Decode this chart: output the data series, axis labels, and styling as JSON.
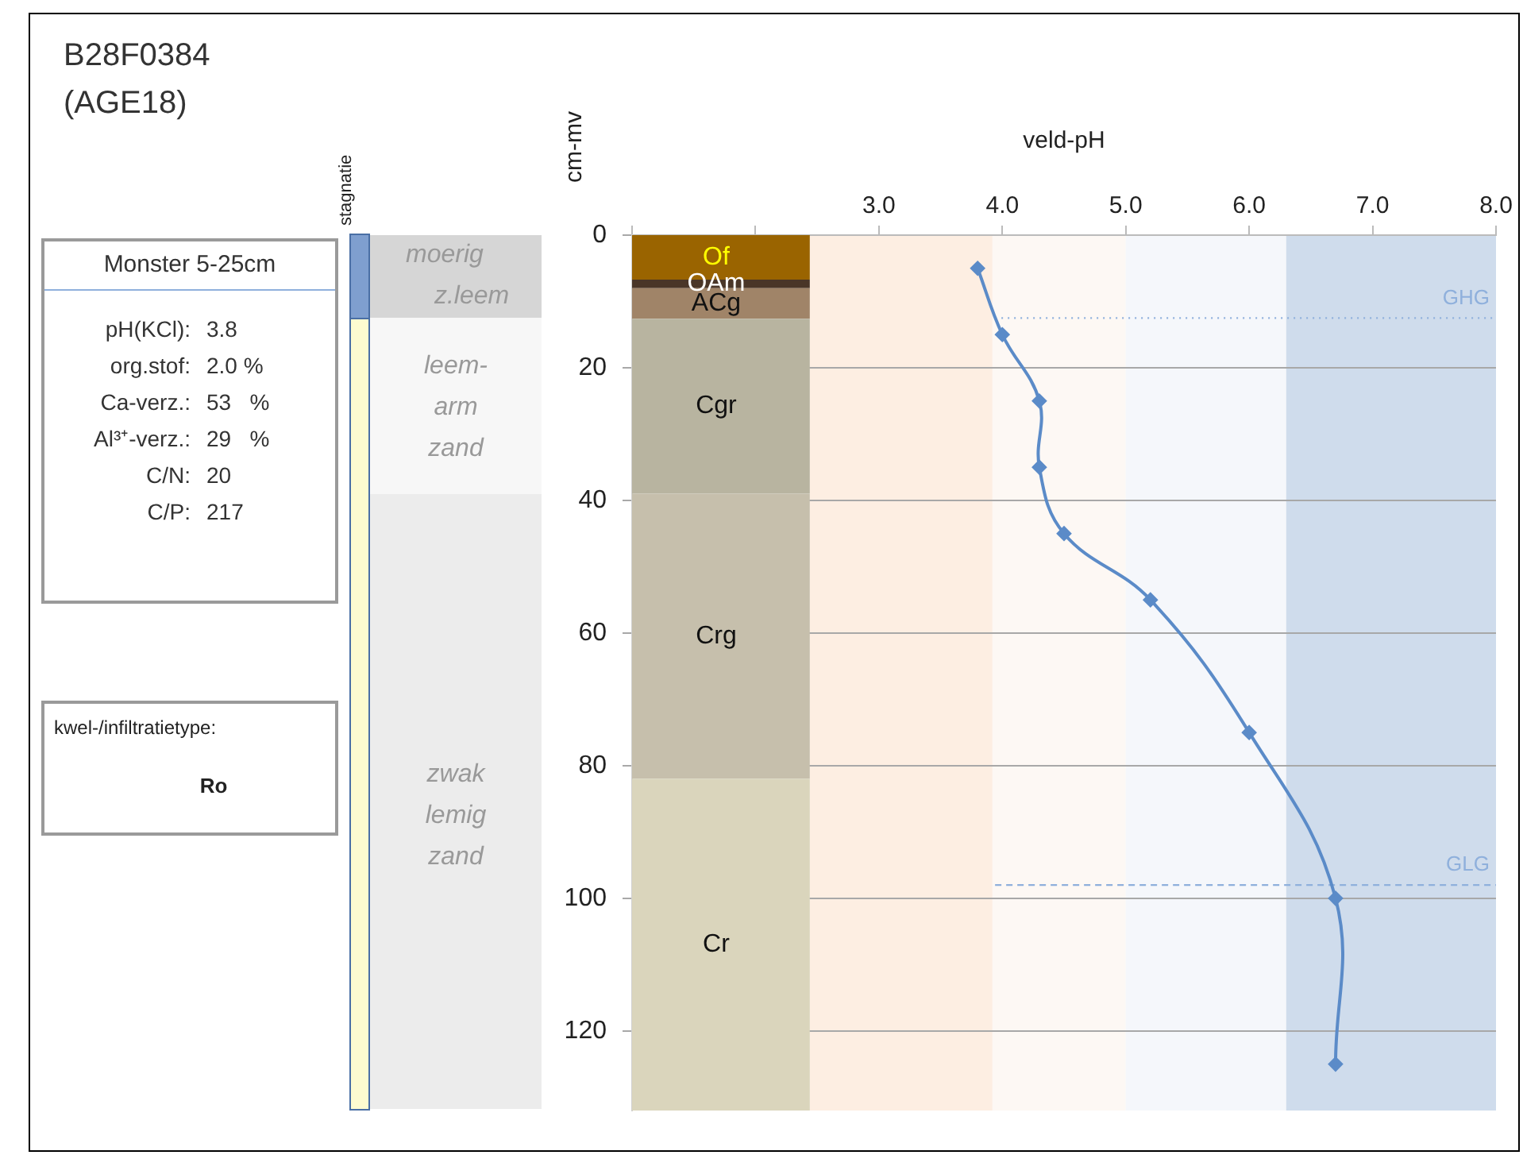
{
  "chart_data": {
    "type": "line",
    "title": "B28F0384",
    "subtitle": "(AGE18)",
    "xlabel": "veld-pH",
    "ylabel": "cm-mv",
    "xlim": [
      1,
      8
    ],
    "xticks": [
      {
        "value": 1,
        "label": null
      },
      {
        "value": 2,
        "label": null
      },
      {
        "value": 3,
        "label": "3.0"
      },
      {
        "value": 4,
        "label": "4.0"
      },
      {
        "value": 5,
        "label": "5.0"
      },
      {
        "value": 6,
        "label": "6.0"
      },
      {
        "value": 7,
        "label": "7.0"
      },
      {
        "value": 8,
        "label": "8.0"
      }
    ],
    "ylim": [
      132,
      0
    ],
    "yticks": [
      0,
      20,
      40,
      60,
      80,
      100,
      120
    ],
    "grid": "y",
    "legend": false,
    "marker": "diamond",
    "line_style": "solid",
    "series": [
      {
        "color": "#5b8bc8",
        "x": [
          3.8,
          4.0,
          4.3,
          4.3,
          4.5,
          5.2,
          6.0,
          6.7,
          6.7
        ],
        "values": [
          5,
          15,
          25,
          35,
          45,
          55,
          75,
          100,
          125
        ]
      }
    ],
    "bands": [
      {
        "axis": "x",
        "from": 2.44,
        "to": 3.92,
        "color": "#fdeee2"
      },
      {
        "axis": "x",
        "from": 3.92,
        "to": 5.0,
        "color": "#fdf8f4"
      },
      {
        "axis": "x",
        "from": 5.0,
        "to": 6.3,
        "color": "#f5f7fb"
      },
      {
        "axis": "x",
        "from": 6.3,
        "to": 8.0,
        "color": "#cfdcec"
      },
      {
        "axis": "y",
        "from": 0,
        "to": 6.7,
        "label": "Of",
        "color": "#9a6400"
      },
      {
        "axis": "y",
        "from": 6.7,
        "to": 8,
        "label": "OAm",
        "color": "#4a3628"
      },
      {
        "axis": "y",
        "from": 8,
        "to": 12.6,
        "label": "ACg",
        "color": "#a08468"
      },
      {
        "axis": "y",
        "from": 12.6,
        "to": 39,
        "label": "Cgr",
        "color": "#b8b4a0"
      },
      {
        "axis": "y",
        "from": 39,
        "to": 82,
        "label": "Crg",
        "color": "#c6bfac"
      },
      {
        "axis": "y",
        "from": 82,
        "to": 132,
        "label": "Cr",
        "color": "#dad5bc"
      }
    ],
    "ref_lines": [
      {
        "axis": "y",
        "value": 12.5,
        "label": "GHG",
        "color": "#8fb0dc",
        "line_style": "dotted"
      },
      {
        "axis": "y",
        "value": 98,
        "label": "GLG",
        "color": "#8fb0dc",
        "line_style": "dashed"
      }
    ],
    "annotations": [
      "Monster 5-25cm",
      "pH(KCl): 3.8",
      "org.stof: 2.0 %",
      "Ca-verz.: 53   %",
      "Al³⁺-verz.: 29   %",
      "C/N: 20",
      "C/P: 217",
      "kwel-/infiltratietype:",
      "Ro",
      "stagnatie",
      "moerig",
      "z.leem",
      "leem-\narm\nzand",
      "zwak\nlemig\nzand"
    ]
  }
}
